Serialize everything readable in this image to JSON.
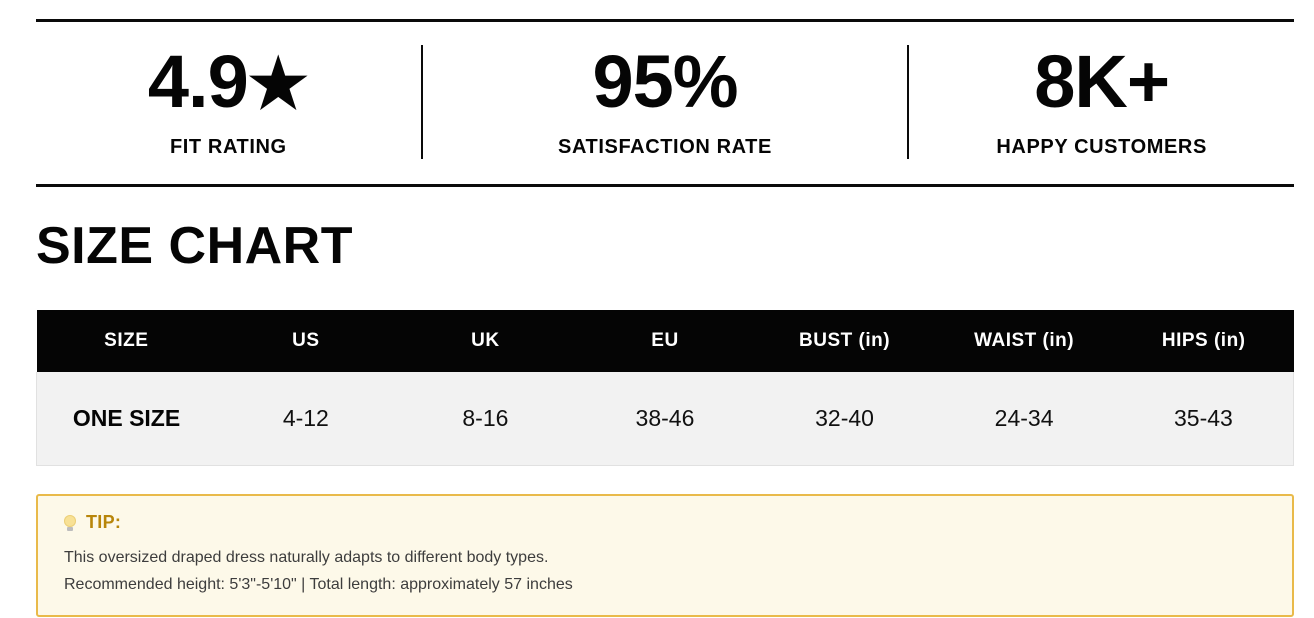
{
  "stats": {
    "items": [
      {
        "value": "4.9",
        "icon": "★",
        "label": "FIT RATING"
      },
      {
        "value": "95%",
        "icon": "",
        "label": "SATISFACTION RATE"
      },
      {
        "value": "8K+",
        "icon": "",
        "label": "HAPPY CUSTOMERS"
      }
    ]
  },
  "section": {
    "title": "SIZE CHART"
  },
  "table": {
    "headers": [
      "SIZE",
      "US",
      "UK",
      "EU",
      "BUST (in)",
      "WAIST (in)",
      "HIPS (in)"
    ],
    "rows": [
      [
        "ONE SIZE",
        "4-12",
        "8-16",
        "38-46",
        "32-40",
        "24-34",
        "35-43"
      ]
    ]
  },
  "tip": {
    "icon": "lightbulb",
    "label": "TIP:",
    "lines": [
      "This oversized draped dress naturally adapts to different body types.",
      "Recommended height: 5'3\"-5'10\" | Total length: approximately 57 inches"
    ]
  },
  "colors": {
    "text_black": "#0a0a0a",
    "header_bg": "#050505",
    "header_text": "#ffffff",
    "row_bg": "#f2f2f2",
    "tip_bg": "#fdf9e9",
    "tip_border": "#e9ba4a",
    "tip_label_text": "#b8860b"
  }
}
